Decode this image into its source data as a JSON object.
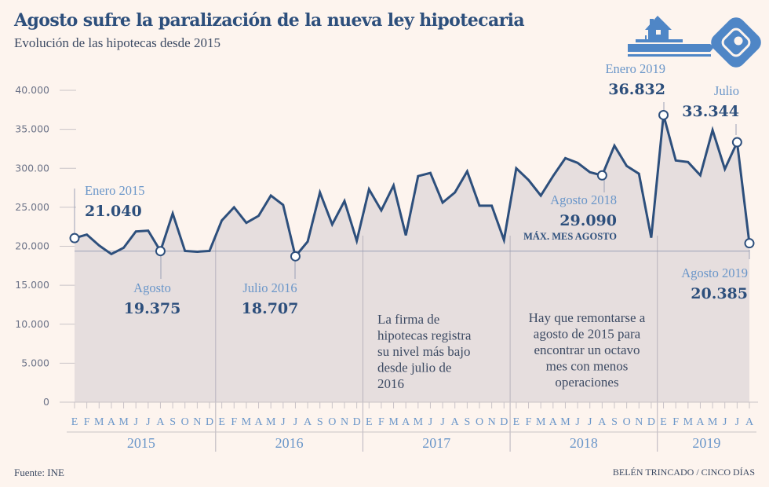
{
  "header": {
    "title": "Agosto sufre la paralización de la nueva ley hipotecaria",
    "subtitle": "Evolución de las hipotecas desde 2015"
  },
  "footer": {
    "source": "Fuente: INE",
    "credit": "BELÉN TRINCADO / CINCO DÍAS"
  },
  "logo": {
    "icon": "house-key-icon",
    "color": "#4f86c6"
  },
  "colors": {
    "background": "#fdf4ee",
    "line": "#2d4f7c",
    "area": "#e3dcdc",
    "label_light": "#6a96c9",
    "value_dark": "#2d4f7c",
    "axis": "#6c7388",
    "grid": "#c9c3c7"
  },
  "chart_data": {
    "type": "area",
    "title": "Agosto sufre la paralización de la nueva ley hipotecaria",
    "subtitle": "Evolución de las hipotecas desde 2015",
    "xlabel": "",
    "ylabel": "",
    "ylim": [
      0,
      40000
    ],
    "grid": false,
    "y_ticks": [
      "0",
      "5.000",
      "10.000",
      "15.000",
      "20.000",
      "25.000",
      "300.00",
      "35.000",
      "40.000"
    ],
    "y_tick_values": [
      0,
      5000,
      10000,
      15000,
      20000,
      25000,
      30000,
      35000,
      40000
    ],
    "month_labels": [
      "E",
      "F",
      "M",
      "A",
      "M",
      "J",
      "J",
      "A",
      "S",
      "O",
      "N",
      "D",
      "E",
      "F",
      "M",
      "A",
      "M",
      "J",
      "J",
      "A",
      "S",
      "O",
      "N",
      "D",
      "E",
      "F",
      "M",
      "A",
      "M",
      "J",
      "J",
      "A",
      "S",
      "O",
      "N",
      "D",
      "E",
      "F",
      "M",
      "A",
      "M",
      "J",
      "J",
      "A",
      "S",
      "O",
      "N",
      "D",
      "E",
      "F",
      "M",
      "A",
      "M",
      "J",
      "J",
      "A"
    ],
    "year_labels": [
      {
        "label": "2015",
        "start": 0,
        "end": 11
      },
      {
        "label": "2016",
        "start": 12,
        "end": 23
      },
      {
        "label": "2017",
        "start": 24,
        "end": 35
      },
      {
        "label": "2018",
        "start": 36,
        "end": 47
      },
      {
        "label": "2019",
        "start": 48,
        "end": 55
      }
    ],
    "reference_line": 19375,
    "series": [
      {
        "name": "Hipotecas",
        "values": [
          21040,
          21500,
          20100,
          19000,
          19800,
          21900,
          22000,
          19375,
          24200,
          19400,
          19300,
          19400,
          23300,
          25000,
          23000,
          23900,
          26500,
          25300,
          18707,
          20600,
          26900,
          22800,
          25800,
          20700,
          27300,
          24600,
          27800,
          21400,
          29000,
          29400,
          25600,
          26900,
          29600,
          25200,
          25200,
          20800,
          30000,
          28500,
          26500,
          29000,
          31300,
          30700,
          29500,
          29090,
          32900,
          30300,
          29300,
          21100,
          36832,
          31000,
          30800,
          29100,
          34900,
          29900,
          33344,
          20385
        ]
      }
    ],
    "annotations": [
      {
        "index": 0,
        "label": "Enero 2015",
        "value_text": "21.040",
        "note": ""
      },
      {
        "index": 7,
        "label": "Agosto",
        "value_text": "19.375",
        "note": ""
      },
      {
        "index": 18,
        "label": "Julio 2016",
        "value_text": "18.707",
        "note": ""
      },
      {
        "index": 43,
        "label": "Agosto 2018",
        "value_text": "29.090",
        "note": "MÁX. MES AGOSTO"
      },
      {
        "index": 48,
        "label": "Enero 2019",
        "value_text": "36.832",
        "note": ""
      },
      {
        "index": 54,
        "label": "Julio",
        "value_text": "33.344",
        "note": ""
      },
      {
        "index": 55,
        "label": "Agosto 2019",
        "value_text": "20.385",
        "note": ""
      }
    ],
    "notes": [
      {
        "lines": [
          "La firma de",
          "hipotecas registra",
          "su nivel más bajo",
          "desde julio de",
          "2016"
        ],
        "align": "left"
      },
      {
        "lines": [
          "Hay que remontarse a",
          "agosto de 2015 para",
          "encontrar un octavo",
          "mes con menos",
          "operaciones"
        ],
        "align": "center"
      }
    ]
  }
}
